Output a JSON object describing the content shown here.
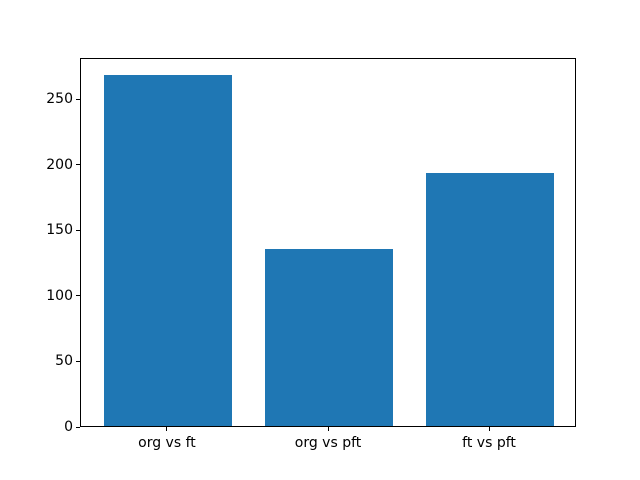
{
  "figure": {
    "background": "#ffffff",
    "spine_color": "#000000",
    "tick_label_color": "#000000"
  },
  "chart_data": {
    "type": "bar",
    "categories": [
      "org vs ft",
      "org vs pft",
      "ft vs pft"
    ],
    "values": [
      268,
      135,
      193
    ],
    "title": "",
    "xlabel": "",
    "ylabel": "",
    "ylim": [
      0,
      281.4
    ],
    "yticks": [
      0,
      50,
      100,
      150,
      200,
      250
    ],
    "bar_color": "#1f77b4",
    "bar_width_fraction": 0.8,
    "grid": false,
    "legend": null
  }
}
